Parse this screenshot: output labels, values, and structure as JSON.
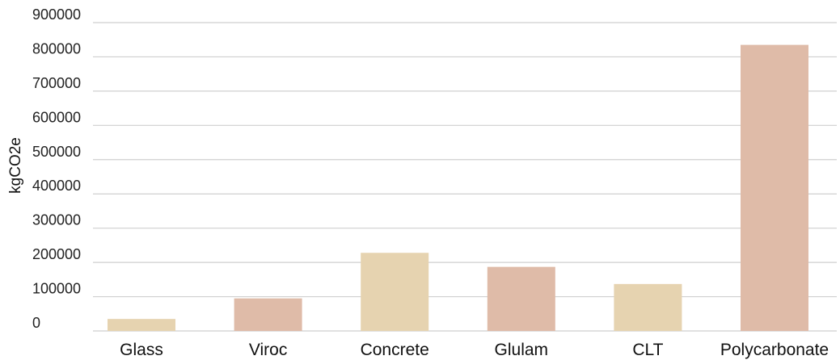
{
  "chart_data": {
    "type": "bar",
    "title": "",
    "xlabel": "",
    "ylabel": "kgCO2e",
    "categories": [
      "Glass",
      "Viroc",
      "Concrete",
      "Glulam",
      "CLT",
      "Polycarbonate"
    ],
    "values": [
      35000,
      95000,
      228000,
      187000,
      137000,
      835000
    ],
    "bar_colors": [
      "#e6d3b0",
      "#dfbba8",
      "#e6d3b0",
      "#dfbba8",
      "#e6d3b0",
      "#dfbba8"
    ],
    "ylim": [
      0,
      900000
    ],
    "yticks": [
      0,
      100000,
      200000,
      300000,
      400000,
      500000,
      600000,
      700000,
      800000,
      900000
    ],
    "ytick_labels": [
      "0",
      "100000",
      "200000",
      "300000",
      "400000",
      "500000",
      "600000",
      "700000",
      "800000",
      "900000"
    ],
    "grid": true,
    "legend": "none"
  }
}
